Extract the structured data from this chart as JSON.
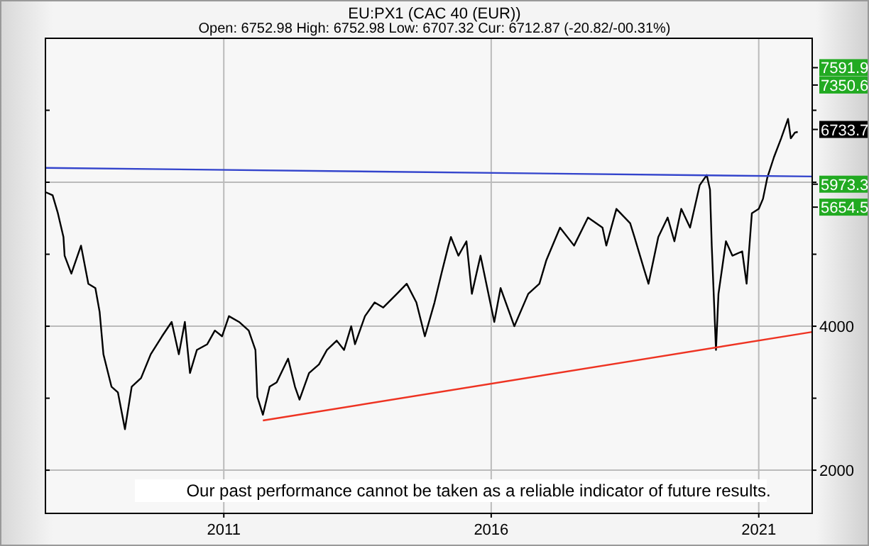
{
  "chart_data": {
    "type": "line",
    "title": "EU:PX1 (CAC 40 (EUR))",
    "subtitle": "Open: 6752.98 High: 6752.98 Low: 6707.32 Cur: 6712.87 (-20.82/-00.31%)",
    "annotations": [
      "Our past performance cannot be taken as a reliable indicator of future results."
    ],
    "xlim": [
      "2007-09-01",
      "2022-01-01"
    ],
    "xticks": [
      {
        "value": "2011-01-01",
        "label": "2011"
      },
      {
        "value": "2016-01-01",
        "label": "2016"
      },
      {
        "value": "2021-01-01",
        "label": "2021"
      }
    ],
    "ylim": [
      1400,
      8000
    ],
    "yticks": [
      2000,
      {
        "value": 3000,
        "label": null
      },
      4000,
      {
        "value": 5000,
        "label": null
      },
      {
        "value": 6000,
        "label": null
      },
      {
        "value": 7000,
        "label": null
      }
    ],
    "grid": true,
    "y2lim": [
      1400,
      8000
    ],
    "y2ticks": [
      7591.9,
      7350.6,
      6733.7,
      5973.3,
      5654.5
    ],
    "series": [
      {
        "color": "#000000",
        "x": [
          "2007-09-05",
          "2007-10-20",
          "2007-11-25",
          "2008-01-02",
          "2008-01-10",
          "2008-02-25",
          "2008-05-01",
          "2008-06-20",
          "2008-08-07",
          "2008-09-05",
          "2008-10-01",
          "2008-11-25",
          "2009-01-08",
          "2009-02-25",
          "2009-04-12",
          "2009-06-15",
          "2009-08-20",
          "2009-11-05",
          "2010-01-10",
          "2010-02-28",
          "2010-04-10",
          "2010-05-15",
          "2010-07-01",
          "2010-09-10",
          "2010-11-01",
          "2010-12-20",
          "2011-02-05",
          "2011-04-15",
          "2011-06-20",
          "2011-08-05",
          "2011-08-18",
          "2011-09-25",
          "2011-11-10",
          "2011-12-28",
          "2012-03-15",
          "2012-05-01",
          "2012-06-01",
          "2012-08-05",
          "2012-10-12",
          "2012-12-05",
          "2013-02-10",
          "2013-04-01",
          "2013-05-20",
          "2013-06-15",
          "2013-08-22",
          "2013-10-27",
          "2013-12-25",
          "2014-03-28",
          "2014-06-03",
          "2014-08-08",
          "2014-10-05",
          "2014-12-10",
          "2015-01-26",
          "2015-03-15",
          "2015-04-01",
          "2015-05-22",
          "2015-07-16",
          "2015-08-22",
          "2015-10-20",
          "2016-01-22",
          "2016-03-05",
          "2016-06-07",
          "2016-09-10",
          "2016-11-25",
          "2017-01-12",
          "2017-04-15",
          "2017-07-20",
          "2017-10-23",
          "2018-01-30",
          "2018-02-25",
          "2018-05-05",
          "2018-08-07",
          "2018-09-05",
          "2018-11-10",
          "2018-12-10",
          "2019-02-15",
          "2019-04-20",
          "2019-06-05",
          "2019-07-22",
          "2019-09-20",
          "2019-11-25",
          "2020-01-12",
          "2020-02-03",
          "2020-02-15",
          "2020-03-15",
          "2020-04-01",
          "2020-05-22",
          "2020-07-05",
          "2020-09-10",
          "2020-10-10",
          "2020-11-15",
          "2021-01-01",
          "2021-01-30",
          "2021-02-28",
          "2021-04-15",
          "2021-06-03",
          "2021-07-20",
          "2021-08-08",
          "2021-09-05",
          "2021-09-24"
        ],
        "values": [
          5860,
          5820,
          5570,
          5240,
          4980,
          4730,
          5120,
          4590,
          4530,
          4200,
          3610,
          3160,
          3080,
          2570,
          3160,
          3280,
          3610,
          3860,
          4060,
          3610,
          4060,
          3350,
          3670,
          3750,
          3940,
          3860,
          4140,
          4060,
          3940,
          3670,
          3020,
          2770,
          3160,
          3220,
          3550,
          3160,
          2980,
          3350,
          3470,
          3670,
          3800,
          3670,
          4000,
          3750,
          4140,
          4330,
          4260,
          4450,
          4590,
          4330,
          3860,
          4330,
          4730,
          5120,
          5240,
          4980,
          5180,
          4450,
          4980,
          4060,
          4530,
          4000,
          4450,
          4590,
          4920,
          5370,
          5120,
          5510,
          5370,
          5120,
          5630,
          5430,
          5240,
          4790,
          4590,
          5240,
          5510,
          5180,
          5630,
          5370,
          5960,
          6100,
          5900,
          5120,
          3670,
          4450,
          5180,
          4980,
          5040,
          4590,
          5570,
          5630,
          5770,
          6060,
          6350,
          6610,
          6880,
          6610,
          6690,
          6700
        ]
      },
      {
        "color": "#3344cc",
        "x": [
          "2007-09-01",
          "2022-01-01"
        ],
        "values": [
          6200,
          6080
        ]
      },
      {
        "color": "#ee3322",
        "x": [
          "2011-09-25",
          "2022-01-01"
        ],
        "values": [
          2690,
          3920
        ]
      }
    ]
  }
}
